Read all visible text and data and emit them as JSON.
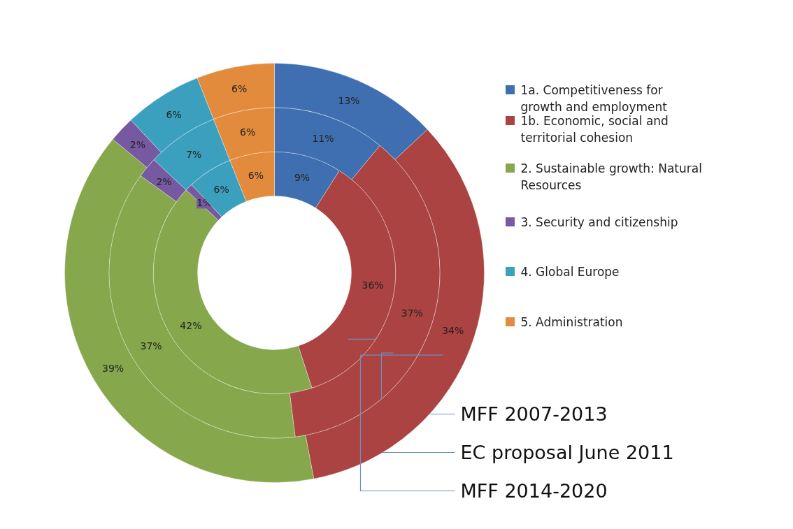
{
  "chart_data": {
    "type": "donut",
    "categories": [
      "1a. Competitiveness  for growth and employment",
      "1b. Economic, social and territorial cohesion",
      "2. Sustainable growth: Natural Resources",
      "3. Security and citizenship",
      "4. Global Europe",
      "5. Administration"
    ],
    "colors": [
      "#3f6fb0",
      "#aa4341",
      "#86a74c",
      "#7659a0",
      "#3aa0bd",
      "#e38b3c"
    ],
    "series": [
      {
        "name": "MFF 2007-2013",
        "values": [
          9,
          36,
          42,
          1,
          6,
          6
        ],
        "value_labels": [
          "9%",
          "36%",
          "42%",
          "1%",
          "6%",
          "6%"
        ]
      },
      {
        "name": "EC proposal June 2011",
        "values": [
          11,
          37,
          37,
          2,
          7,
          6
        ],
        "value_labels": [
          "11%",
          "37%",
          "37%",
          "2%",
          "7%",
          "6%"
        ]
      },
      {
        "name": "MFF 2014-2020",
        "values": [
          13,
          34,
          39,
          2,
          6,
          6
        ],
        "value_labels": [
          "13%",
          "34%",
          "39%",
          "2%",
          "6%",
          "6%"
        ]
      }
    ],
    "legend": "right"
  }
}
